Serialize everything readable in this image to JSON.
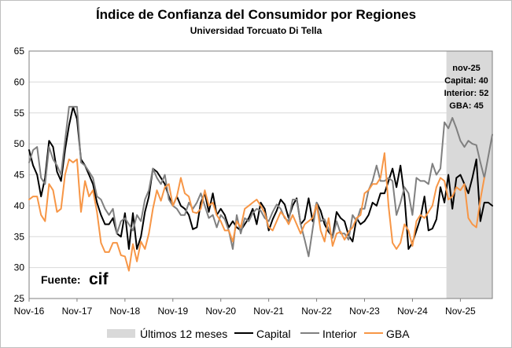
{
  "chart_data": {
    "type": "line",
    "title": "Índice de Confianza del Consumidor por Regiones",
    "subtitle": "Universidad Torcuato Di Tella",
    "xlabel": "",
    "ylabel": "",
    "ylim": [
      25,
      65
    ],
    "yticks": [
      25,
      30,
      35,
      40,
      45,
      50,
      55,
      60,
      65
    ],
    "x_start": "Nov-16",
    "x_end": "Nov-25",
    "xticks": [
      "Nov-16",
      "Nov-17",
      "Nov-18",
      "Nov-19",
      "Nov-20",
      "Nov-21",
      "Nov-22",
      "Nov-23",
      "Nov-24",
      "Nov-25"
    ],
    "grid": true,
    "legend_position": "bottom",
    "shaded_region": {
      "label": "Últimos 12 meses",
      "from": "Dic-24",
      "to": "Nov-25",
      "color": "#d9d9d9"
    },
    "annotation": {
      "lines": [
        "nov-25",
        "Capital: 40",
        "Interior: 52",
        "GBA: 45"
      ]
    },
    "source_label": "Fuente:",
    "source_logo": "cif",
    "series": [
      {
        "name": "Capital",
        "color": "#000000",
        "values": [
          49,
          46.5,
          45,
          41.5,
          44.5,
          50.5,
          49.5,
          45.5,
          44,
          49,
          53,
          56,
          54,
          47.5,
          46.5,
          45,
          43.5,
          40.5,
          38.5,
          37,
          37,
          38,
          35.5,
          35,
          38.8,
          33,
          38.8,
          33,
          35,
          39,
          41.5,
          46,
          45.5,
          44.5,
          43.5,
          41.5,
          40,
          41.5,
          40,
          39.5,
          38.5,
          36.2,
          36.5,
          40.5,
          42,
          39,
          42,
          38.5,
          39.5,
          38.5,
          36.5,
          37.5,
          36.5,
          36,
          37,
          38,
          39.5,
          37,
          40.5,
          39.5,
          36,
          37.8,
          39.2,
          41,
          40.2,
          38,
          40,
          41.2,
          37,
          37.8,
          41.2,
          37.5,
          40.5,
          39.2,
          37,
          35.8,
          35,
          39,
          38,
          37.5,
          35.2,
          34.2,
          38,
          37,
          37.5,
          38.5,
          40.5,
          40,
          42,
          42,
          44,
          46,
          43,
          46.5,
          41.5,
          33,
          34,
          36,
          38,
          41.5,
          36,
          36.3,
          37.8,
          43,
          40.5,
          45,
          39.5,
          44.5,
          45,
          43.5,
          42,
          44.5,
          47.5,
          37.5,
          40.5,
          40.5,
          40
        ]
      },
      {
        "name": "Interior",
        "color": "#808080",
        "values": [
          47,
          49,
          49.5,
          44.5,
          43.5,
          49.5,
          47.5,
          46.5,
          45,
          50.5,
          56,
          56,
          56,
          47,
          46.5,
          45.5,
          44.5,
          41.5,
          41,
          39.5,
          38.5,
          39.5,
          35.5,
          37.5,
          38,
          37,
          36,
          38.5,
          37.5,
          41,
          42.5,
          46,
          44.5,
          43.5,
          45,
          41,
          40,
          39.5,
          38.5,
          38.5,
          40.5,
          39.5,
          40.5,
          42,
          40,
          38,
          38.5,
          36.5,
          38.5,
          37.8,
          36,
          33,
          38.5,
          35.5,
          38,
          37.5,
          38.8,
          39.5,
          39.2,
          38,
          37.5,
          39,
          40.2,
          39.5,
          38,
          37.5,
          41,
          41,
          37,
          34.5,
          31.8,
          36.2,
          40.5,
          37.5,
          37.8,
          36.2,
          34.8,
          37.5,
          35.5,
          35.5,
          34.5,
          38.5,
          37.5,
          39.5,
          39.5,
          42.5,
          44,
          46.5,
          44,
          44,
          44.5,
          44,
          38.5,
          40.5,
          43,
          42,
          38.5,
          44.5,
          44,
          44,
          43.5,
          46.8,
          45,
          46,
          53.5,
          52.5,
          54.2,
          52.5,
          50.5,
          49.5,
          50.5,
          50,
          49.8,
          47,
          44.5,
          48,
          51.5
        ]
      },
      {
        "name": "GBA",
        "color": "#f79646",
        "values": [
          41,
          41.5,
          41.5,
          38.5,
          37.5,
          43.5,
          42.5,
          39,
          39.5,
          45,
          47.5,
          47,
          47.5,
          39,
          44,
          41.5,
          42.5,
          39,
          34,
          32.5,
          32.5,
          34,
          34,
          32,
          31.8,
          29.5,
          33.8,
          31,
          34.2,
          33,
          35.5,
          39.5,
          42.5,
          40.8,
          43,
          43.5,
          40,
          41.5,
          44.5,
          42,
          41.5,
          39,
          38.8,
          39.5,
          42.5,
          40,
          40.5,
          38.5,
          37.5,
          36,
          36,
          34.2,
          37.5,
          36.5,
          39.5,
          40,
          40.5,
          41,
          40,
          38.8,
          36.5,
          36,
          37.5,
          39,
          38.2,
          37,
          38.5,
          37,
          35.5,
          37,
          37.5,
          38,
          40.2,
          36,
          34.2,
          38,
          33.5,
          35.5,
          35.8,
          34.5,
          35.8,
          36.5,
          38,
          38.5,
          42,
          42.5,
          43.5,
          43.5,
          44.5,
          48.5,
          40,
          34,
          33,
          34,
          37,
          36,
          33.5,
          37.5,
          38.5,
          38,
          39,
          40,
          43,
          44.5,
          44,
          41,
          41.5,
          43,
          42.5,
          43.5,
          38,
          37,
          36.5,
          41,
          44.5
        ]
      }
    ]
  }
}
